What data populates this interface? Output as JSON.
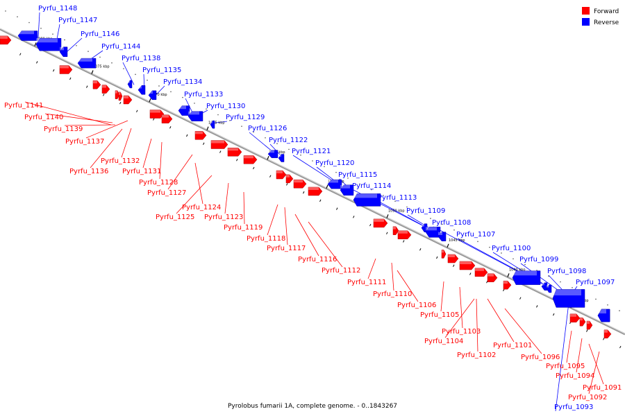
{
  "caption": "Pyrolobus fumarii 1A, complete genome. - 0..1843267",
  "legend": [
    {
      "label": "Forward",
      "color": "#ff0000"
    },
    {
      "label": "Reverse",
      "color": "#0000ff"
    }
  ],
  "colors": {
    "forward": "#ff0000",
    "reverse": "#0000ff",
    "backbone": "#999999"
  },
  "ticks": [
    "1080 kbp",
    "1075 kbp",
    "1070 kbp",
    "1065 kbp",
    "1060 kbp",
    "1055 kbp",
    "1050 kbp",
    "1045 kbp",
    "1040 kbp",
    "1035 kbp"
  ],
  "genes_reverse": [
    "Pyrfu_1148",
    "Pyrfu_1147",
    "Pyrfu_1146",
    "Pyrfu_1144",
    "Pyrfu_1138",
    "Pyrfu_1135",
    "Pyrfu_1134",
    "Pyrfu_1133",
    "Pyrfu_1130",
    "Pyrfu_1129",
    "Pyrfu_1126",
    "Pyrfu_1122",
    "Pyrfu_1121",
    "Pyrfu_1120",
    "Pyrfu_1115",
    "Pyrfu_1114",
    "Pyrfu_1113",
    "Pyrfu_1109",
    "Pyrfu_1108",
    "Pyrfu_1107",
    "Pyrfu_1100",
    "Pyrfu_1099",
    "Pyrfu_1098",
    "Pyrfu_1097",
    "Pyrfu_1093"
  ],
  "genes_forward": [
    "Pyrfu_1141",
    "Pyrfu_1140",
    "Pyrfu_1139",
    "Pyrfu_1137",
    "Pyrfu_1132",
    "Pyrfu_1136",
    "Pyrfu_1131",
    "Pyrfu_1128",
    "Pyrfu_1127",
    "Pyrfu_1124",
    "Pyrfu_1125",
    "Pyrfu_1123",
    "Pyrfu_1119",
    "Pyrfu_1118",
    "Pyrfu_1117",
    "Pyrfu_1116",
    "Pyrfu_1112",
    "Pyrfu_1111",
    "Pyrfu_1110",
    "Pyrfu_1106",
    "Pyrfu_1105",
    "Pyrfu_1103",
    "Pyrfu_1104",
    "Pyrfu_1102",
    "Pyrfu_1101",
    "Pyrfu_1096",
    "Pyrfu_1095",
    "Pyrfu_1094",
    "Pyrfu_1091",
    "Pyrfu_1092"
  ]
}
